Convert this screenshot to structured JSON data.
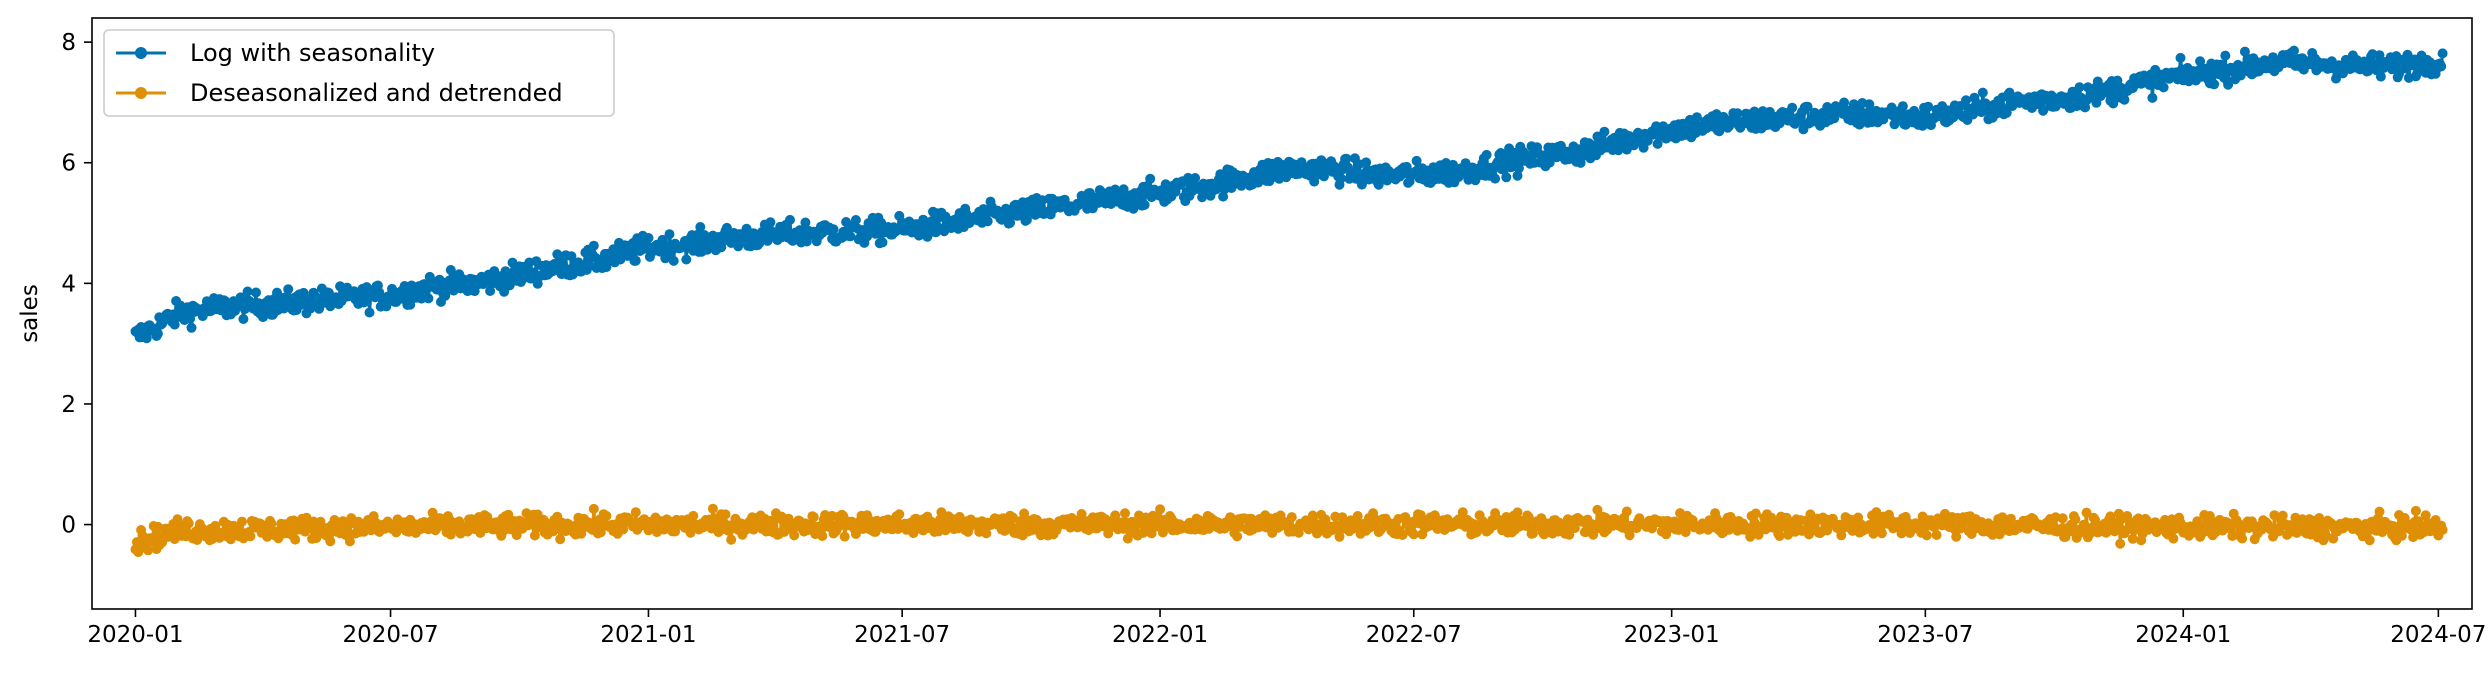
{
  "chart_data": {
    "type": "line",
    "title": "",
    "xlabel": "",
    "ylabel": "sales",
    "x_range": [
      "2019-12-01",
      "2024-07-25"
    ],
    "ylim": [
      -1.4,
      8.4
    ],
    "x_ticks": [
      "2020-01",
      "2020-07",
      "2021-01",
      "2021-07",
      "2022-01",
      "2022-07",
      "2023-01",
      "2023-07",
      "2024-01",
      "2024-07"
    ],
    "y_ticks": [
      0,
      2,
      4,
      6,
      8
    ],
    "grid": false,
    "legend_position": "top-left",
    "markers": "circle",
    "x_start": "2020-01-01",
    "x_end": "2024-07-04",
    "frequency": "daily",
    "series": [
      {
        "name": "Log with seasonality",
        "color": "#0173b2",
        "points": [
          [
            "2020-01-01",
            3.1
          ],
          [
            "2020-02-01",
            3.5
          ],
          [
            "2020-03-01",
            3.6
          ],
          [
            "2020-04-01",
            3.65
          ],
          [
            "2020-05-01",
            3.7
          ],
          [
            "2020-06-01",
            3.75
          ],
          [
            "2020-07-01",
            3.8
          ],
          [
            "2020-08-01",
            3.95
          ],
          [
            "2020-09-01",
            4.0
          ],
          [
            "2020-10-01",
            4.15
          ],
          [
            "2020-11-01",
            4.3
          ],
          [
            "2020-12-01",
            4.4
          ],
          [
            "2021-01-01",
            4.6
          ],
          [
            "2021-02-01",
            4.65
          ],
          [
            "2021-03-01",
            4.75
          ],
          [
            "2021-04-01",
            4.8
          ],
          [
            "2021-05-01",
            4.85
          ],
          [
            "2021-06-01",
            4.85
          ],
          [
            "2021-07-01",
            4.9
          ],
          [
            "2021-08-01",
            5.0
          ],
          [
            "2021-09-01",
            5.1
          ],
          [
            "2021-10-01",
            5.2
          ],
          [
            "2021-11-01",
            5.3
          ],
          [
            "2021-12-01",
            5.4
          ],
          [
            "2022-01-01",
            5.5
          ],
          [
            "2022-02-01",
            5.6
          ],
          [
            "2022-03-01",
            5.75
          ],
          [
            "2022-04-01",
            5.9
          ],
          [
            "2022-05-01",
            5.9
          ],
          [
            "2022-06-01",
            5.8
          ],
          [
            "2022-07-01",
            5.8
          ],
          [
            "2022-08-01",
            5.85
          ],
          [
            "2022-09-01",
            6.0
          ],
          [
            "2022-10-01",
            6.1
          ],
          [
            "2022-11-01",
            6.2
          ],
          [
            "2022-12-01",
            6.4
          ],
          [
            "2023-01-01",
            6.55
          ],
          [
            "2023-02-01",
            6.65
          ],
          [
            "2023-03-01",
            6.7
          ],
          [
            "2023-04-01",
            6.75
          ],
          [
            "2023-05-01",
            6.8
          ],
          [
            "2023-06-01",
            6.8
          ],
          [
            "2023-07-01",
            6.75
          ],
          [
            "2023-08-01",
            6.85
          ],
          [
            "2023-09-01",
            7.0
          ],
          [
            "2023-10-01",
            7.05
          ],
          [
            "2023-11-01",
            7.15
          ],
          [
            "2023-12-01",
            7.3
          ],
          [
            "2024-01-01",
            7.45
          ],
          [
            "2024-02-01",
            7.55
          ],
          [
            "2024-03-01",
            7.65
          ],
          [
            "2024-04-01",
            7.65
          ],
          [
            "2024-05-01",
            7.6
          ],
          [
            "2024-06-01",
            7.6
          ],
          [
            "2024-07-04",
            7.7
          ]
        ],
        "noise_amplitude": 0.22
      },
      {
        "name": "Deseasonalized and detrended",
        "color": "#de8f05",
        "points": [
          [
            "2020-01-01",
            -0.3
          ],
          [
            "2020-02-01",
            -0.1
          ],
          [
            "2020-06-01",
            -0.05
          ],
          [
            "2020-12-01",
            0.0
          ],
          [
            "2021-06-01",
            0.0
          ],
          [
            "2022-01-01",
            0.0
          ],
          [
            "2022-07-01",
            0.0
          ],
          [
            "2023-01-01",
            0.0
          ],
          [
            "2023-07-01",
            0.0
          ],
          [
            "2024-01-01",
            -0.05
          ],
          [
            "2024-07-04",
            -0.05
          ]
        ],
        "noise_amplitude": 0.2
      }
    ]
  }
}
